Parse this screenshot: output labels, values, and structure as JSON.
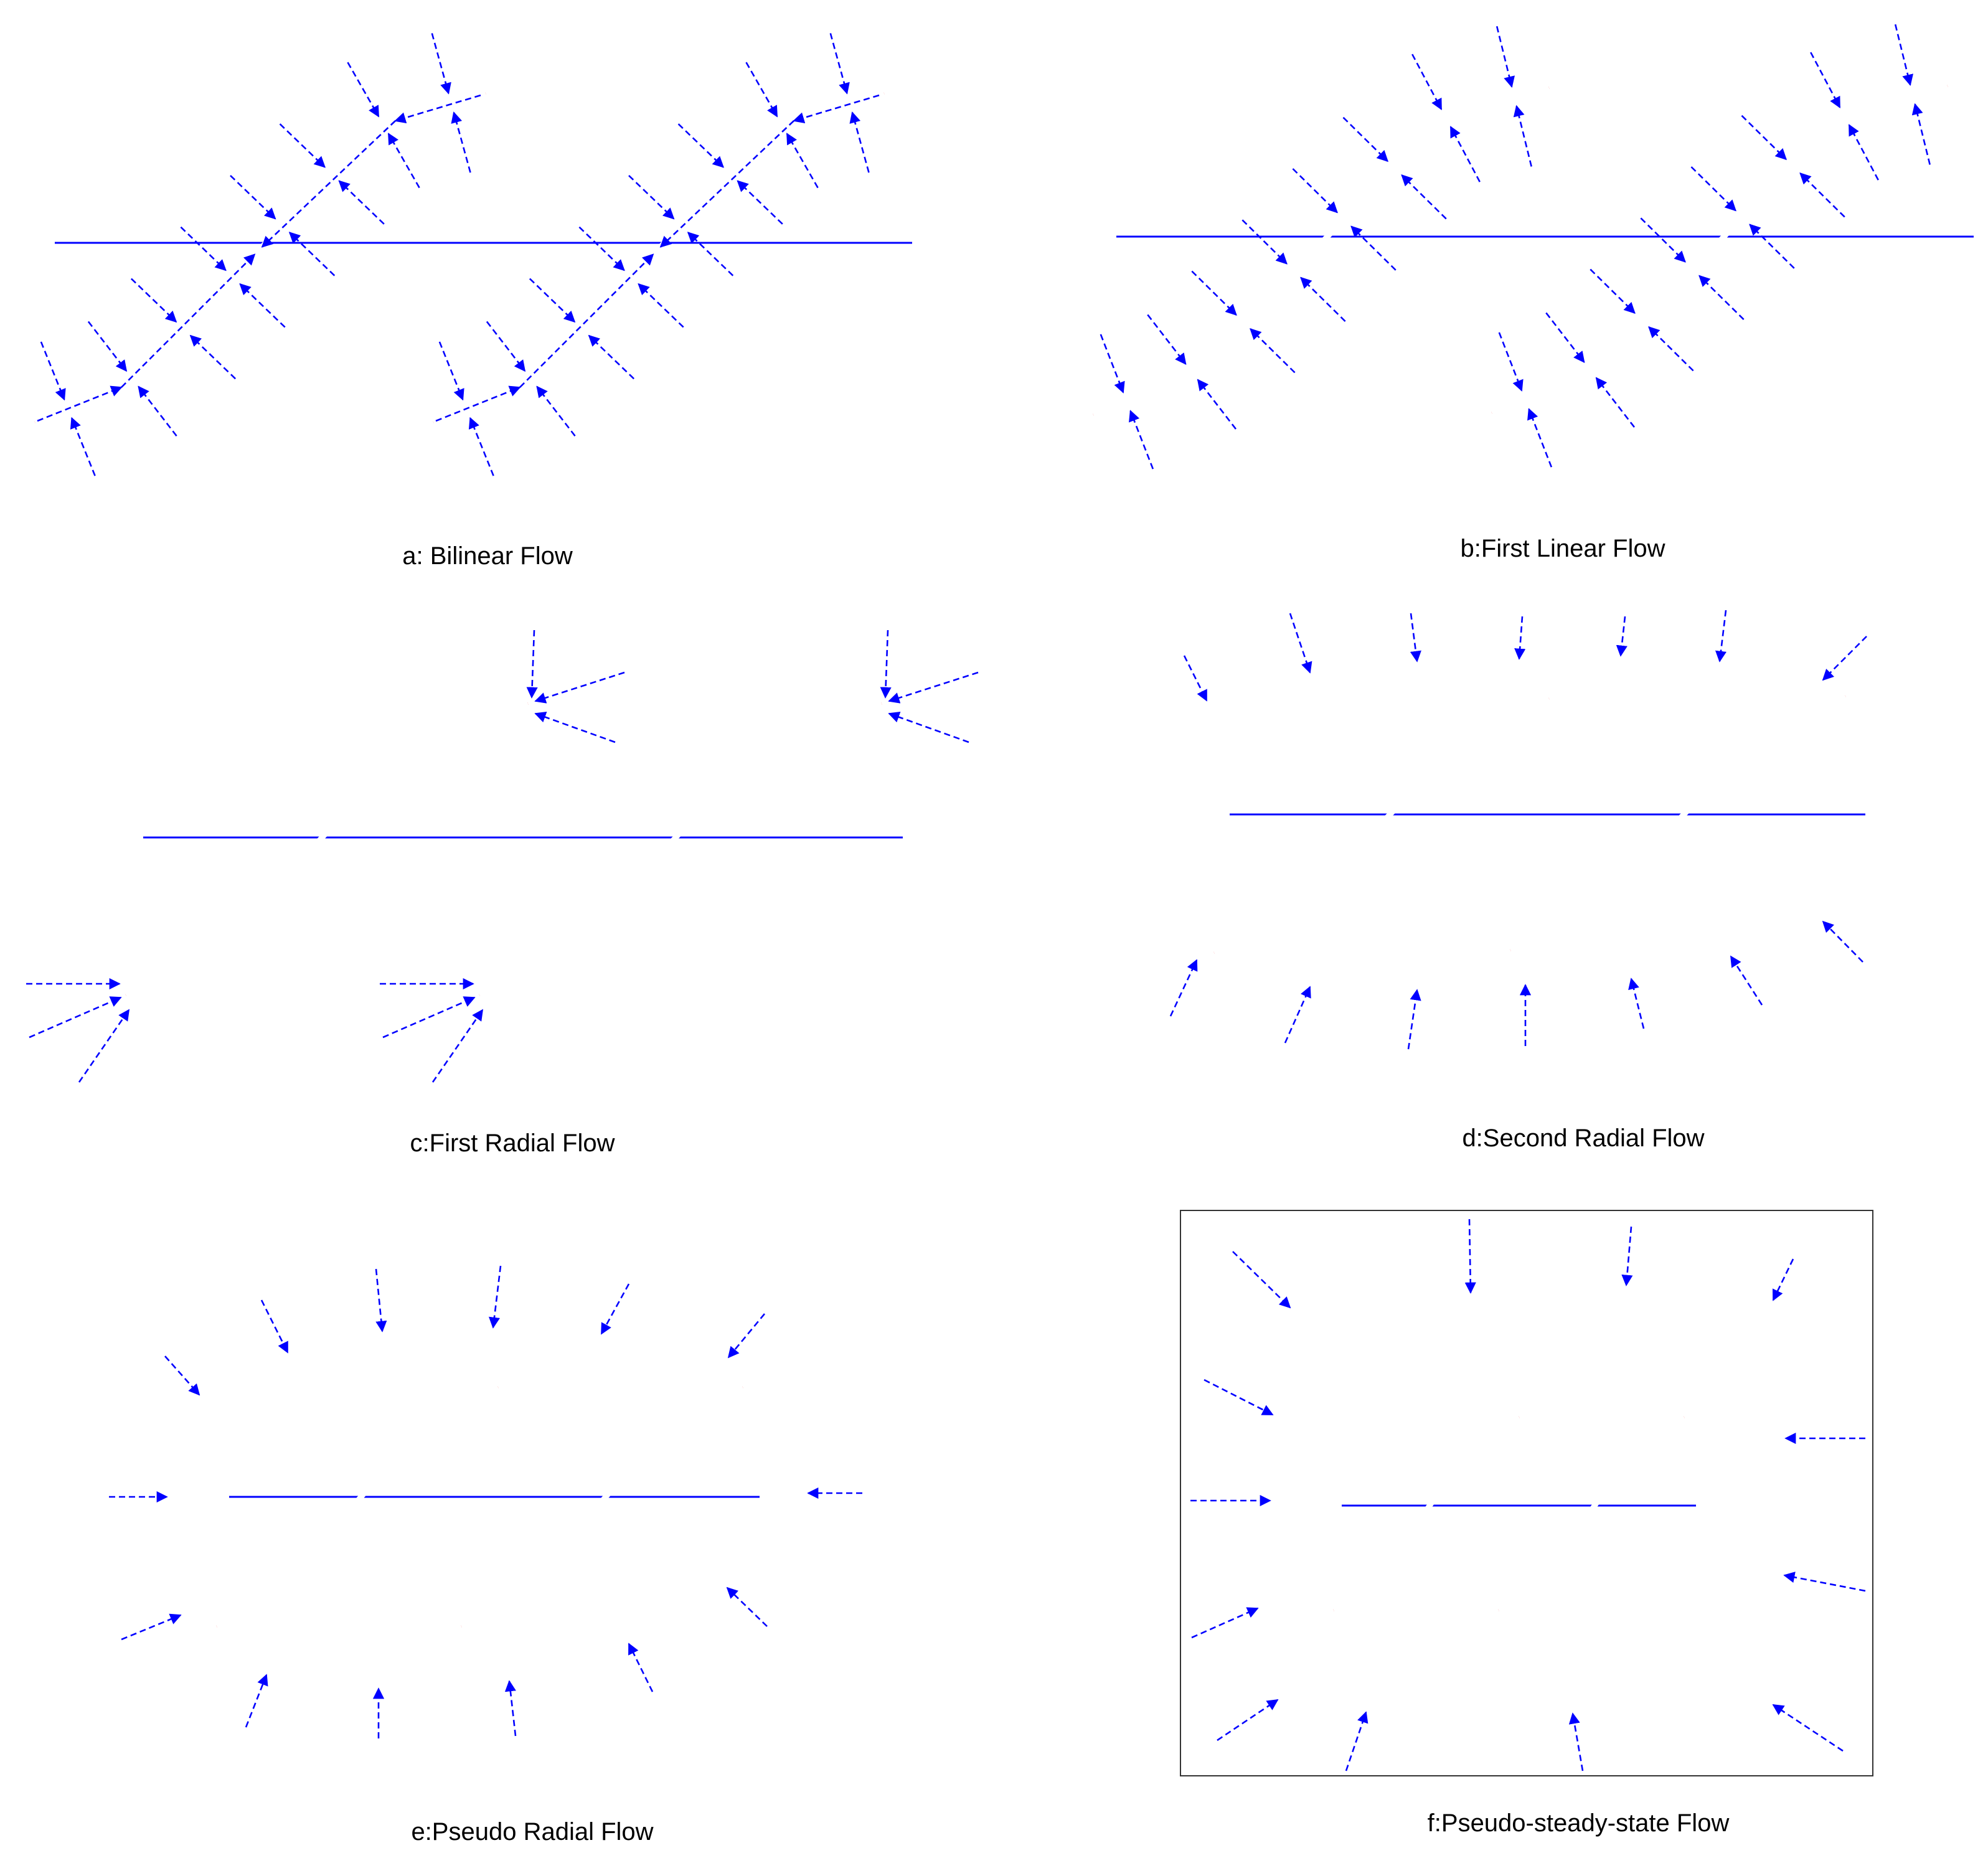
{
  "colors": {
    "fracture": "#ff0000",
    "flow": "#0000ff",
    "well": "#0000ff"
  },
  "panels": [
    {
      "id": "a",
      "caption": "a: Bilinear Flow"
    },
    {
      "id": "b",
      "caption": "b:First Linear Flow"
    },
    {
      "id": "c",
      "caption": "c:First Radial Flow"
    },
    {
      "id": "d",
      "caption": "d:Second Radial Flow"
    },
    {
      "id": "e",
      "caption": "e:Pseudo Radial Flow"
    },
    {
      "id": "f",
      "caption": "f:Pseudo-steady-state Flow"
    }
  ]
}
